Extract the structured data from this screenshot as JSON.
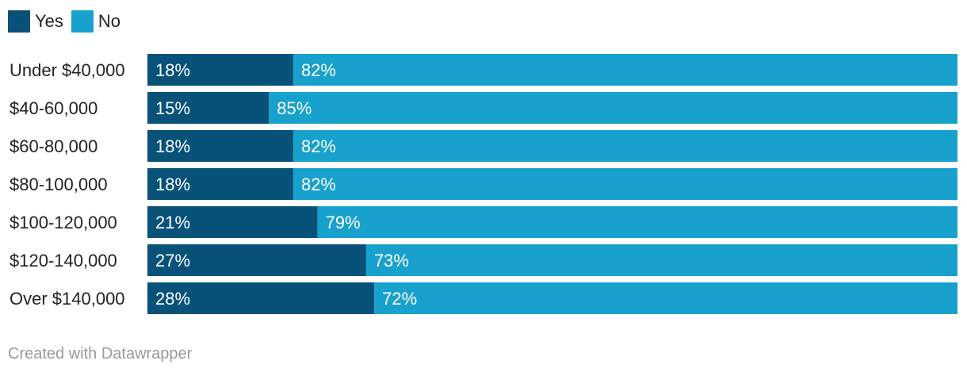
{
  "chart_data": {
    "type": "bar",
    "orientation": "horizontal",
    "stacked": true,
    "categories": [
      "Under $40,000",
      "$40-60,000",
      "$60-80,000",
      "$80-100,000",
      "$100-120,000",
      "$120-140,000",
      "Over $140,000"
    ],
    "series": [
      {
        "name": "Yes",
        "color": "#08527a",
        "values": [
          18,
          15,
          18,
          18,
          21,
          27,
          28
        ],
        "labels": [
          "18%",
          "15%",
          "18%",
          "18%",
          "21%",
          "27%",
          "28%"
        ]
      },
      {
        "name": "No",
        "color": "#18a1cd",
        "values": [
          82,
          85,
          82,
          82,
          79,
          73,
          72
        ],
        "labels": [
          "82%",
          "85%",
          "82%",
          "82%",
          "79%",
          "73%",
          "72%"
        ]
      }
    ],
    "xlim": [
      0,
      100
    ],
    "legend_position": "top-left",
    "grid": false
  },
  "footer": {
    "credit": "Created with Datawrapper"
  }
}
